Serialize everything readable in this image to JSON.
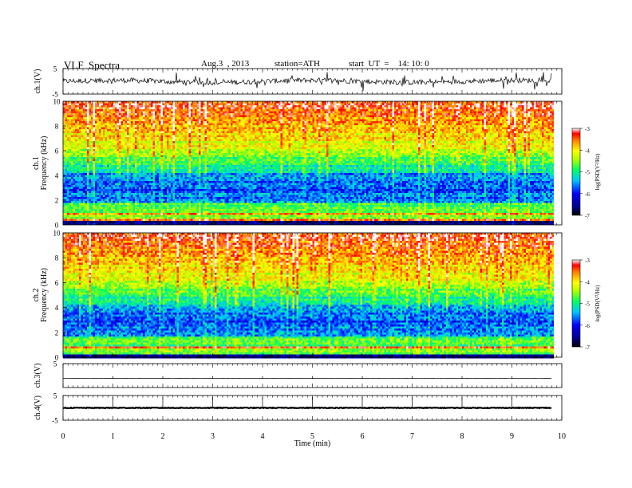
{
  "header": {
    "title": "VLF  Spectra",
    "date": "Aug.3  , 2013",
    "station": "station=ATH",
    "start": "start  UT  =    14: 10: 0"
  },
  "chart_data": {
    "type": "heatmap",
    "xlabel": "Time  (min)",
    "xlim": [
      0,
      10
    ],
    "xticks": [
      "0",
      "1",
      "2",
      "3",
      "4",
      "5",
      "6",
      "7",
      "8",
      "9",
      "10"
    ],
    "data_end_min": 9.8,
    "panels": [
      {
        "id": "ch1-wave",
        "type": "line",
        "ylabel": "ch.1(V)",
        "ylim": [
          -5,
          5
        ],
        "yticks": [
          "5",
          "-5"
        ],
        "baseline": 0,
        "spread": 1.0
      },
      {
        "id": "ch1-spec",
        "type": "heatmap",
        "ylabel1": "ch.1",
        "ylabel2": "Frequency  (kHz)",
        "ylim": [
          0,
          10
        ],
        "yticks": [
          "0",
          "2",
          "4",
          "6",
          "8",
          "10"
        ],
        "colorbar": {
          "label": "log(PSD(V²/Hz)",
          "range": [
            -7,
            -3
          ],
          "ticks": [
            "-3",
            "-4",
            "-5",
            "-6",
            "-7"
          ]
        }
      },
      {
        "id": "ch2-spec",
        "type": "heatmap",
        "ylabel1": "ch.2",
        "ylabel2": "Frequency  (kHz)",
        "ylim": [
          0,
          10
        ],
        "yticks": [
          "0",
          "2",
          "4",
          "6",
          "8",
          "10"
        ],
        "colorbar": {
          "label": "log(PSD(V²/Hz)",
          "range": [
            -7,
            -3
          ],
          "ticks": [
            "-3",
            "-4",
            "-5",
            "-6",
            "-7"
          ]
        }
      },
      {
        "id": "ch3-wave",
        "type": "line",
        "ylabel": "ch.3(V)",
        "ylim": [
          -5,
          5
        ],
        "yticks": [
          "5"
        ],
        "baseline": -1.2,
        "spread": 0.05
      },
      {
        "id": "ch4-wave",
        "type": "line",
        "ylabel": "ch.4(V)",
        "ylim": [
          -5,
          5
        ],
        "yticks": [
          "5",
          "-5"
        ],
        "baseline": 0,
        "spread": 0.15
      }
    ]
  }
}
